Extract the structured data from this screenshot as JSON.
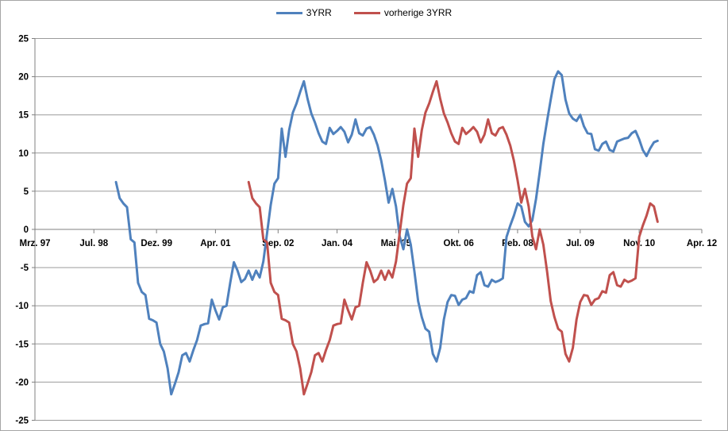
{
  "legend": {
    "items": [
      {
        "label": "3YRR",
        "color": "#4F81BD"
      },
      {
        "label": "vorherige 3YRR",
        "color": "#C0504D"
      }
    ]
  },
  "chart_data": {
    "type": "line",
    "title": "",
    "xlabel": "",
    "ylabel": "",
    "ylim": [
      -25,
      25
    ],
    "y_tick_step": 5,
    "y_tick_labels": [
      "25",
      "20",
      "15",
      "10",
      "5",
      "0",
      "-5",
      "-10",
      "-15",
      "-20",
      "-25"
    ],
    "x_tick_labels": [
      "Mrz. 97",
      "Jul. 98",
      "Dez. 99",
      "Apr. 01",
      "Sep. 02",
      "Jan. 04",
      "Mai. 05",
      "Okt. 06",
      "Feb. 08",
      "Jul. 09",
      "Nov. 10",
      "Apr. 12"
    ],
    "x_tick_month_index": [
      0,
      16,
      33,
      49,
      66,
      82,
      98,
      115,
      131,
      148,
      164,
      181
    ],
    "x_axis_origin_month": "Mrz. 97",
    "grid": true,
    "legend_position": "top-center",
    "series": [
      {
        "name": "3YRR",
        "color": "#4F81BD",
        "start_month_index": 22,
        "start_month_label": "Jan. 99",
        "values": [
          6.2,
          4.1,
          3.4,
          2.9,
          -1.3,
          -1.7,
          -7.0,
          -8.2,
          -8.6,
          -11.7,
          -11.9,
          -12.2,
          -15.0,
          -16.0,
          -18.2,
          -21.6,
          -20.2,
          -18.7,
          -16.5,
          -16.2,
          -17.3,
          -15.8,
          -14.5,
          -12.6,
          -12.4,
          -12.3,
          -9.2,
          -10.6,
          -11.8,
          -10.2,
          -10.0,
          -7.0,
          -4.3,
          -5.4,
          -6.9,
          -6.5,
          -5.4,
          -6.6,
          -5.4,
          -6.3,
          -4.2,
          -0.5,
          3.2,
          6.0,
          6.7,
          13.2,
          9.5,
          13.0,
          15.3,
          16.5,
          18.0,
          19.4,
          17.1,
          15.2,
          14.0,
          12.6,
          11.5,
          11.2,
          13.3,
          12.5,
          12.9,
          13.4,
          12.8,
          11.4,
          12.4,
          14.4,
          12.6,
          12.3,
          13.2,
          13.4,
          12.4,
          11.0,
          9.0,
          6.4,
          3.5,
          5.3,
          3.0,
          -0.9,
          -2.6,
          0.0,
          -2.0,
          -5.5,
          -9.4,
          -11.5,
          -13.0,
          -13.4,
          -16.3,
          -17.3,
          -15.5,
          -11.8,
          -9.5,
          -8.6,
          -8.7,
          -9.9,
          -9.2,
          -9.0,
          -8.1,
          -8.3,
          -6.0,
          -5.6,
          -7.3,
          -7.5,
          -6.6,
          -6.9,
          -6.7,
          -6.4,
          -1.0,
          0.5,
          1.8,
          3.4,
          3.0,
          1.0,
          0.4,
          1.2,
          4.0,
          7.5,
          11.2,
          14.2,
          17.0,
          19.7,
          20.7,
          20.2,
          17.0,
          15.2,
          14.5,
          14.2,
          15.0,
          13.5,
          12.6,
          12.5,
          10.5,
          10.3,
          11.2,
          11.5,
          10.4,
          10.2,
          11.5,
          11.7,
          11.9,
          12.0,
          12.6,
          12.9,
          11.8,
          10.4,
          9.6,
          10.6,
          11.4,
          11.6
        ]
      },
      {
        "name": "vorherige 3YRR",
        "color": "#C0504D",
        "start_month_index": 58,
        "start_month_label": "Jan. 02",
        "values": [
          6.2,
          4.1,
          3.4,
          2.9,
          -1.3,
          -1.7,
          -7.0,
          -8.2,
          -8.6,
          -11.7,
          -11.9,
          -12.2,
          -15.0,
          -16.0,
          -18.2,
          -21.6,
          -20.2,
          -18.7,
          -16.5,
          -16.2,
          -17.3,
          -15.8,
          -14.5,
          -12.6,
          -12.4,
          -12.3,
          -9.2,
          -10.6,
          -11.8,
          -10.2,
          -10.0,
          -7.0,
          -4.3,
          -5.4,
          -6.9,
          -6.5,
          -5.4,
          -6.6,
          -5.4,
          -6.3,
          -4.2,
          -0.5,
          3.2,
          6.0,
          6.7,
          13.2,
          9.5,
          13.0,
          15.3,
          16.5,
          18.0,
          19.4,
          17.1,
          15.2,
          14.0,
          12.6,
          11.5,
          11.2,
          13.3,
          12.5,
          12.9,
          13.4,
          12.8,
          11.4,
          12.4,
          14.4,
          12.6,
          12.3,
          13.2,
          13.4,
          12.4,
          11.0,
          9.0,
          6.4,
          3.5,
          5.3,
          3.0,
          -0.9,
          -2.6,
          0.0,
          -2.0,
          -5.5,
          -9.4,
          -11.5,
          -13.0,
          -13.4,
          -16.3,
          -17.3,
          -15.5,
          -11.8,
          -9.5,
          -8.6,
          -8.7,
          -9.9,
          -9.2,
          -9.0,
          -8.1,
          -8.3,
          -6.0,
          -5.6,
          -7.3,
          -7.5,
          -6.6,
          -6.9,
          -6.7,
          -6.4,
          -1.0,
          0.5,
          1.8,
          3.4,
          3.0,
          1.0
        ]
      }
    ]
  },
  "colors": {
    "gridline": "#9b9b9b",
    "axis": "#808080",
    "tick": "#808080",
    "label_text": "#000000",
    "outer_border": "#a6a6a6",
    "background": "#ffffff"
  }
}
